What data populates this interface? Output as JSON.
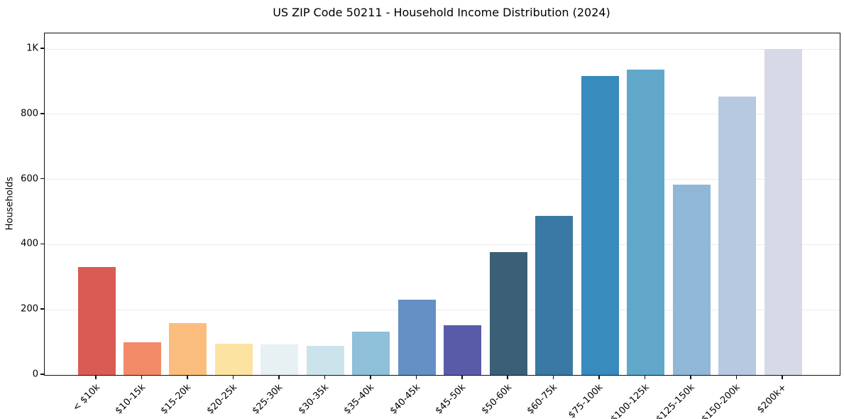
{
  "chart": {
    "title": "US ZIP Code 50211 - Household Income Distribution (2024)",
    "ylabel": "Households"
  },
  "chart_data": {
    "type": "bar",
    "title": "US ZIP Code 50211 - Household Income Distribution (2024)",
    "xlabel": "",
    "ylabel": "Households",
    "categories": [
      "< $10k",
      "$10-15k",
      "$15-20k",
      "$20-25k",
      "$25-30k",
      "$30-35k",
      "$35-40k",
      "$40-45k",
      "$45-50k",
      "$50-60k",
      "$60-75k",
      "$75-100k",
      "$100-125k",
      "$125-150k",
      "$150-200k",
      "$200k+"
    ],
    "values": [
      332,
      100,
      160,
      96,
      93,
      89,
      134,
      232,
      153,
      377,
      488,
      918,
      937,
      583,
      854,
      1000
    ],
    "bar_colors": [
      "#d95b54",
      "#f28a68",
      "#fbbd7e",
      "#fce3a2",
      "#e7f0f3",
      "#cbe3eb",
      "#8ec0da",
      "#6590c5",
      "#5a5ba8",
      "#3b6076",
      "#3979a4",
      "#388bbd",
      "#60a7ca",
      "#90b7d6",
      "#b7c8e1",
      "#d7d9e7"
    ],
    "ylim": [
      0,
      1048
    ],
    "yticks": {
      "values": [
        0,
        200,
        400,
        600,
        800,
        1000
      ],
      "labels": [
        "0",
        "200",
        "400",
        "600",
        "800",
        "1K"
      ]
    },
    "grid": "horizontal",
    "legend": "none"
  }
}
